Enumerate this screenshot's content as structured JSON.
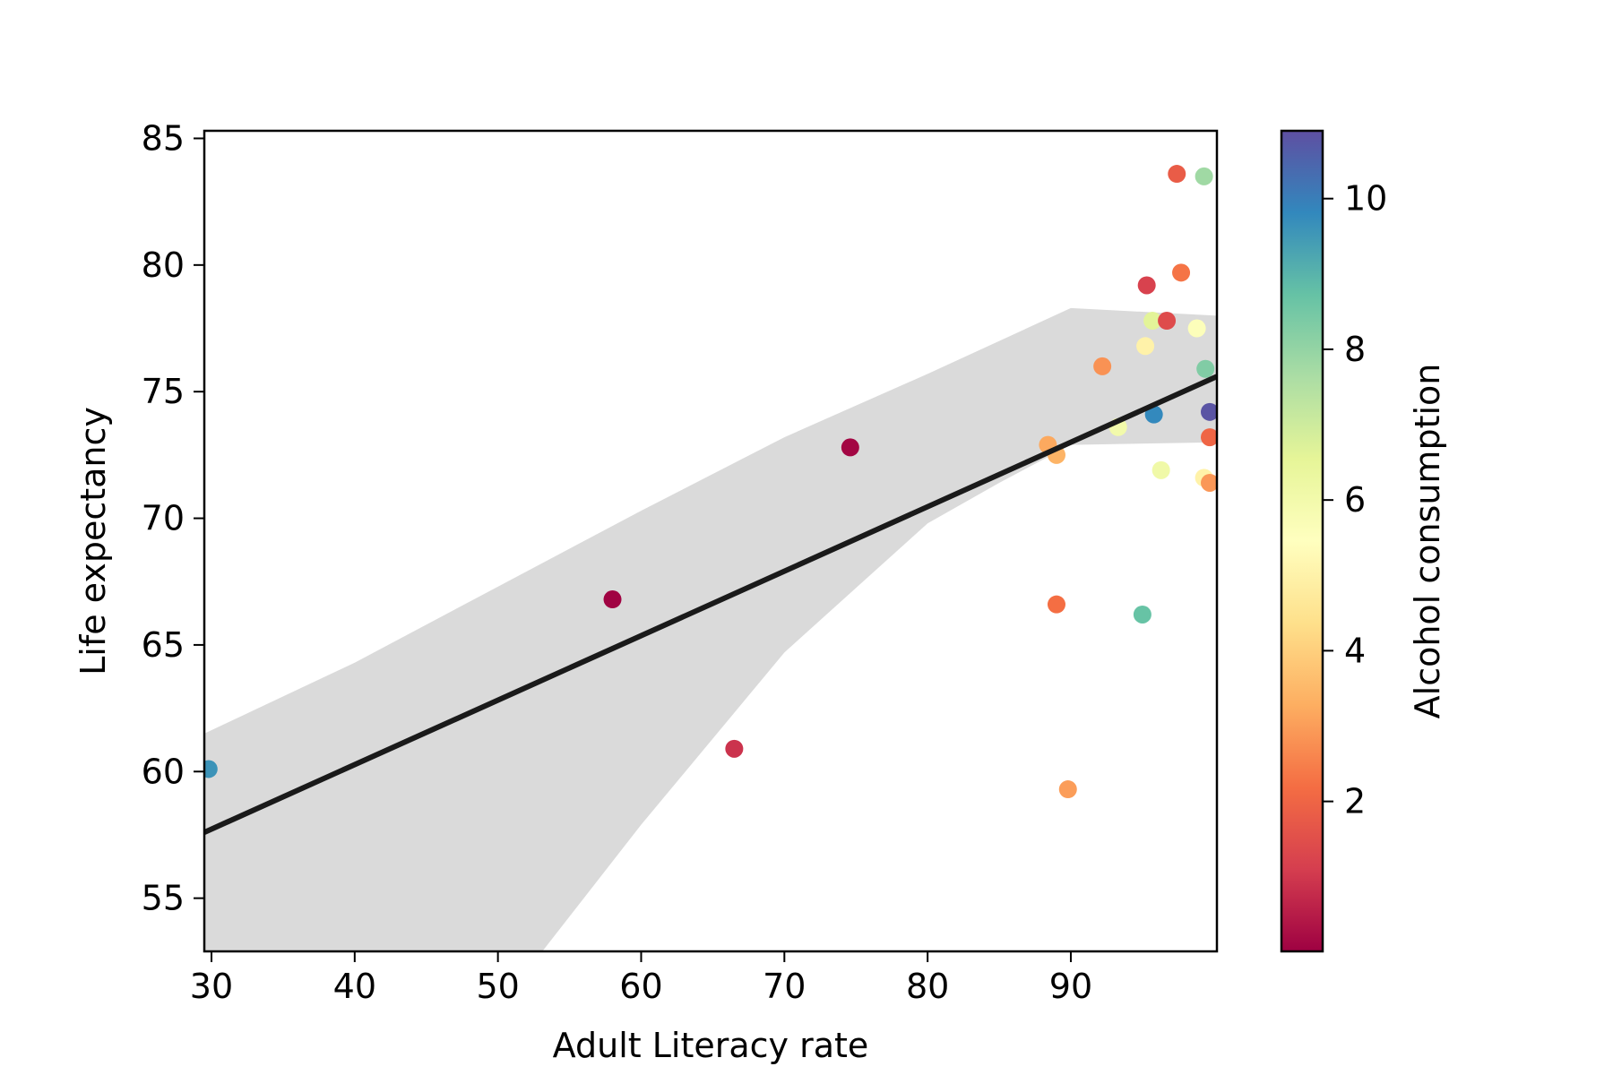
{
  "chart_data": {
    "type": "scatter",
    "title": "",
    "xlabel": "Adult Literacy rate",
    "ylabel": "Life expectancy",
    "xlim": [
      29.5,
      100.2
    ],
    "ylim": [
      52.9,
      85.3
    ],
    "xticks": [
      30,
      40,
      50,
      60,
      70,
      80,
      90
    ],
    "yticks": [
      55,
      60,
      65,
      70,
      75,
      80,
      85
    ],
    "grid": false,
    "colorbar": {
      "label": "Alcohol consumption",
      "min": 0.01,
      "max": 10.9,
      "ticks": [
        2,
        4,
        6,
        8,
        10
      ],
      "colormap": "Spectral",
      "colors": [
        "#9e0142",
        "#d53e4f",
        "#f46d43",
        "#fdae61",
        "#fee08b",
        "#ffffbf",
        "#e6f598",
        "#abdda4",
        "#66c2a5",
        "#3288bd",
        "#5e4fa2"
      ]
    },
    "regression": {
      "color": "#1a1a1a",
      "band_color": "#dadada",
      "line": [
        [
          29.5,
          57.6
        ],
        [
          100.2,
          75.6
        ]
      ],
      "band_upper": [
        [
          29.5,
          61.5
        ],
        [
          40,
          64.3
        ],
        [
          50,
          67.3
        ],
        [
          60,
          70.3
        ],
        [
          70,
          73.2
        ],
        [
          80,
          75.7
        ],
        [
          90,
          78.3
        ],
        [
          100.2,
          78.0
        ]
      ],
      "band_lower": [
        [
          53.1,
          52.9
        ],
        [
          60,
          57.9
        ],
        [
          70,
          64.7
        ],
        [
          80,
          69.8
        ],
        [
          85,
          71.4
        ],
        [
          90,
          72.9
        ],
        [
          100.2,
          73.0
        ]
      ]
    },
    "points": [
      {
        "x": 29.8,
        "y": 60.1,
        "c": 9.6
      },
      {
        "x": 58.0,
        "y": 66.8,
        "c": 0.05
      },
      {
        "x": 66.5,
        "y": 60.9,
        "c": 0.9
      },
      {
        "x": 74.6,
        "y": 72.8,
        "c": 0.1
      },
      {
        "x": 88.4,
        "y": 72.9,
        "c": 3.2
      },
      {
        "x": 89.0,
        "y": 72.5,
        "c": 3.4
      },
      {
        "x": 89.0,
        "y": 66.6,
        "c": 2.2
      },
      {
        "x": 89.8,
        "y": 59.3,
        "c": 3.0
      },
      {
        "x": 92.2,
        "y": 76.0,
        "c": 2.8
      },
      {
        "x": 93.3,
        "y": 73.6,
        "c": 6.0
      },
      {
        "x": 95.0,
        "y": 66.2,
        "c": 8.7
      },
      {
        "x": 95.2,
        "y": 76.8,
        "c": 5.0
      },
      {
        "x": 95.3,
        "y": 79.2,
        "c": 1.2
      },
      {
        "x": 95.7,
        "y": 77.8,
        "c": 6.6
      },
      {
        "x": 95.8,
        "y": 74.1,
        "c": 9.8
      },
      {
        "x": 96.3,
        "y": 71.9,
        "c": 6.1
      },
      {
        "x": 96.7,
        "y": 77.8,
        "c": 1.4
      },
      {
        "x": 97.4,
        "y": 83.6,
        "c": 1.8
      },
      {
        "x": 97.7,
        "y": 79.7,
        "c": 2.3
      },
      {
        "x": 98.8,
        "y": 77.5,
        "c": 5.6
      },
      {
        "x": 99.3,
        "y": 83.5,
        "c": 7.8
      },
      {
        "x": 99.3,
        "y": 71.6,
        "c": 5.0
      },
      {
        "x": 99.4,
        "y": 75.9,
        "c": 8.3
      },
      {
        "x": 99.7,
        "y": 73.2,
        "c": 2.0
      },
      {
        "x": 99.7,
        "y": 74.2,
        "c": 10.8
      },
      {
        "x": 99.7,
        "y": 71.4,
        "c": 2.9
      }
    ]
  }
}
